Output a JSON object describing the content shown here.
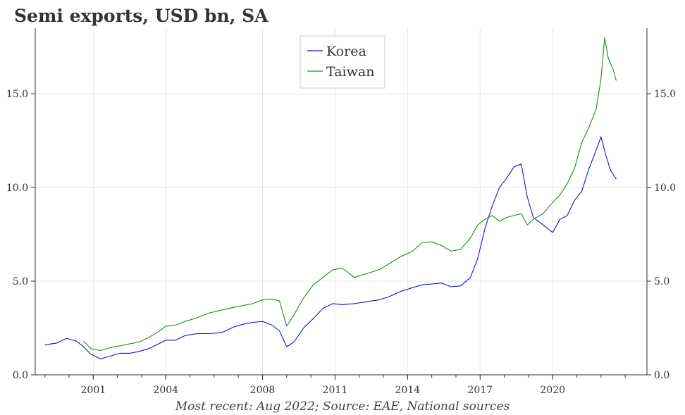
{
  "chart_data": {
    "type": "line",
    "title": "Semi exports, USD bn, SA",
    "caption": "Most recent: Aug 2022; Source: EAE, National sources",
    "xlabel": "",
    "ylabel": "",
    "ylim": [
      0,
      18.5
    ],
    "xlim": [
      1998.6,
      2023.9
    ],
    "yticks": [
      0,
      5,
      10,
      15
    ],
    "ytick_labels": [
      "0.0",
      "5.0",
      "10.0",
      "15.0"
    ],
    "xticks": [
      2001,
      2004,
      2008,
      2011,
      2014,
      2017,
      2020
    ],
    "xtick_labels": [
      "2001",
      "2004",
      "2008",
      "2011",
      "2014",
      "2017",
      "2020"
    ],
    "grid": true,
    "legend_position": "top-center",
    "series": [
      {
        "name": "Korea",
        "color": "#1111dd",
        "points": [
          [
            1999.0,
            1.6
          ],
          [
            1999.5,
            1.7
          ],
          [
            1999.9,
            1.95
          ],
          [
            2000.3,
            1.8
          ],
          [
            2000.6,
            1.5
          ],
          [
            2000.9,
            1.1
          ],
          [
            2001.3,
            0.85
          ],
          [
            2001.7,
            1.0
          ],
          [
            2002.1,
            1.15
          ],
          [
            2002.5,
            1.15
          ],
          [
            2002.9,
            1.25
          ],
          [
            2003.3,
            1.4
          ],
          [
            2003.7,
            1.65
          ],
          [
            2004.0,
            1.85
          ],
          [
            2004.4,
            1.85
          ],
          [
            2004.8,
            2.1
          ],
          [
            2005.3,
            2.2
          ],
          [
            2005.8,
            2.2
          ],
          [
            2006.3,
            2.25
          ],
          [
            2006.8,
            2.55
          ],
          [
            2007.2,
            2.7
          ],
          [
            2007.6,
            2.8
          ],
          [
            2008.0,
            2.85
          ],
          [
            2008.4,
            2.65
          ],
          [
            2008.7,
            2.35
          ],
          [
            2009.0,
            1.5
          ],
          [
            2009.3,
            1.75
          ],
          [
            2009.7,
            2.5
          ],
          [
            2010.1,
            3.0
          ],
          [
            2010.5,
            3.55
          ],
          [
            2010.9,
            3.8
          ],
          [
            2011.3,
            3.75
          ],
          [
            2011.8,
            3.8
          ],
          [
            2012.3,
            3.9
          ],
          [
            2012.8,
            4.0
          ],
          [
            2013.2,
            4.15
          ],
          [
            2013.7,
            4.45
          ],
          [
            2014.2,
            4.65
          ],
          [
            2014.6,
            4.8
          ],
          [
            2015.0,
            4.85
          ],
          [
            2015.4,
            4.9
          ],
          [
            2015.8,
            4.7
          ],
          [
            2016.2,
            4.75
          ],
          [
            2016.6,
            5.2
          ],
          [
            2016.9,
            6.2
          ],
          [
            2017.2,
            7.8
          ],
          [
            2017.5,
            9.0
          ],
          [
            2017.8,
            10.0
          ],
          [
            2018.1,
            10.5
          ],
          [
            2018.4,
            11.1
          ],
          [
            2018.7,
            11.25
          ],
          [
            2018.95,
            9.5
          ],
          [
            2019.2,
            8.4
          ],
          [
            2019.6,
            8.0
          ],
          [
            2020.0,
            7.6
          ],
          [
            2020.3,
            8.3
          ],
          [
            2020.6,
            8.5
          ],
          [
            2020.9,
            9.3
          ],
          [
            2021.2,
            9.8
          ],
          [
            2021.5,
            11.0
          ],
          [
            2021.8,
            12.0
          ],
          [
            2022.0,
            12.7
          ],
          [
            2022.2,
            11.7
          ],
          [
            2022.4,
            10.9
          ],
          [
            2022.63,
            10.45
          ]
        ]
      },
      {
        "name": "Taiwan",
        "color": "#228822",
        "points": [
          [
            2000.6,
            1.8
          ],
          [
            2000.9,
            1.4
          ],
          [
            2001.3,
            1.3
          ],
          [
            2001.7,
            1.45
          ],
          [
            2002.1,
            1.55
          ],
          [
            2002.5,
            1.65
          ],
          [
            2002.9,
            1.75
          ],
          [
            2003.3,
            2.0
          ],
          [
            2003.7,
            2.3
          ],
          [
            2004.0,
            2.6
          ],
          [
            2004.4,
            2.65
          ],
          [
            2004.8,
            2.85
          ],
          [
            2005.3,
            3.05
          ],
          [
            2005.8,
            3.3
          ],
          [
            2006.3,
            3.45
          ],
          [
            2006.8,
            3.6
          ],
          [
            2007.2,
            3.7
          ],
          [
            2007.6,
            3.8
          ],
          [
            2008.0,
            4.0
          ],
          [
            2008.4,
            4.05
          ],
          [
            2008.7,
            3.95
          ],
          [
            2009.0,
            2.6
          ],
          [
            2009.3,
            3.2
          ],
          [
            2009.7,
            4.1
          ],
          [
            2010.1,
            4.8
          ],
          [
            2010.5,
            5.2
          ],
          [
            2010.9,
            5.6
          ],
          [
            2011.3,
            5.7
          ],
          [
            2011.8,
            5.2
          ],
          [
            2012.3,
            5.4
          ],
          [
            2012.8,
            5.6
          ],
          [
            2013.2,
            5.9
          ],
          [
            2013.7,
            6.3
          ],
          [
            2014.2,
            6.6
          ],
          [
            2014.6,
            7.05
          ],
          [
            2015.0,
            7.1
          ],
          [
            2015.4,
            6.9
          ],
          [
            2015.8,
            6.6
          ],
          [
            2016.2,
            6.7
          ],
          [
            2016.6,
            7.3
          ],
          [
            2016.9,
            8.0
          ],
          [
            2017.2,
            8.3
          ],
          [
            2017.5,
            8.5
          ],
          [
            2017.8,
            8.2
          ],
          [
            2018.1,
            8.4
          ],
          [
            2018.4,
            8.5
          ],
          [
            2018.7,
            8.6
          ],
          [
            2018.95,
            8.0
          ],
          [
            2019.2,
            8.3
          ],
          [
            2019.6,
            8.6
          ],
          [
            2020.0,
            9.2
          ],
          [
            2020.3,
            9.6
          ],
          [
            2020.6,
            10.2
          ],
          [
            2020.9,
            11.0
          ],
          [
            2021.2,
            12.4
          ],
          [
            2021.5,
            13.2
          ],
          [
            2021.8,
            14.2
          ],
          [
            2022.0,
            15.8
          ],
          [
            2022.15,
            18.0
          ],
          [
            2022.3,
            16.9
          ],
          [
            2022.5,
            16.3
          ],
          [
            2022.63,
            15.7
          ]
        ]
      }
    ]
  }
}
